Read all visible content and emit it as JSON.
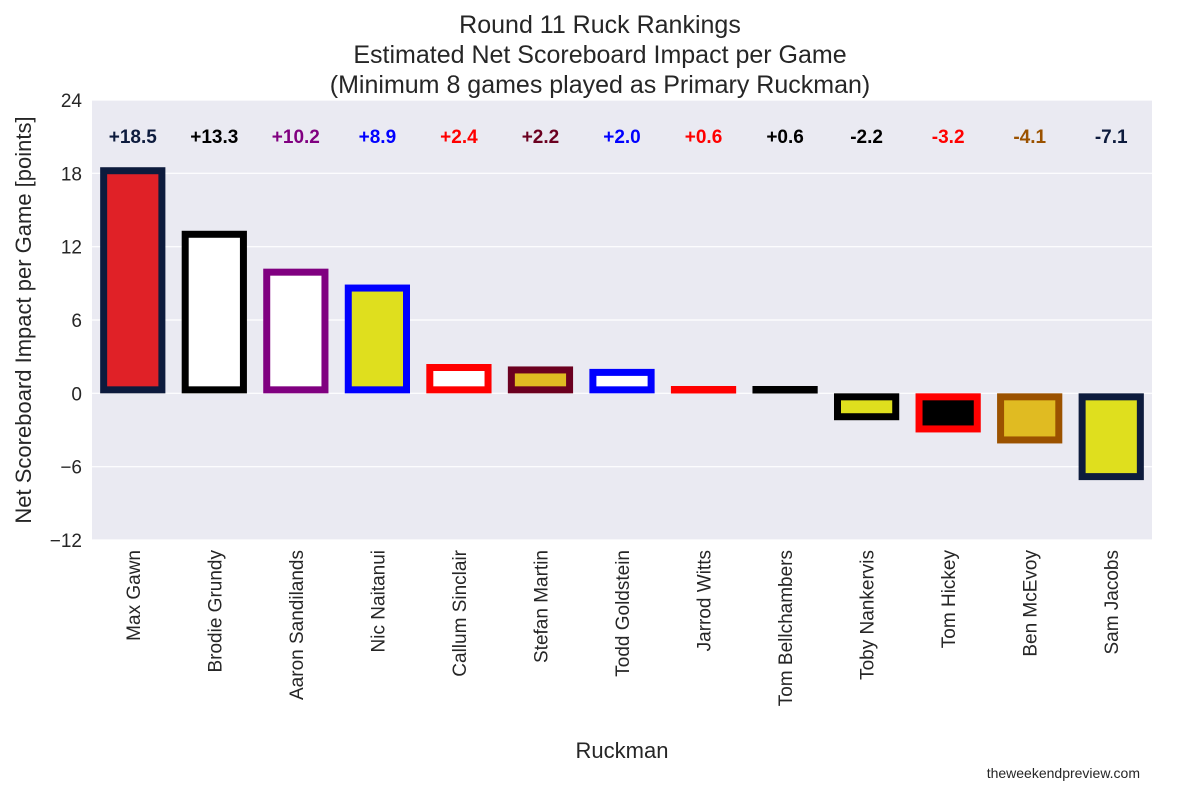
{
  "chart_data": {
    "type": "bar",
    "title": "Round 11 Ruck Rankings",
    "subtitle_lines": [
      "Estimated Net Scoreboard Impact per Game",
      "(Minimum 8 games played as Primary Ruckman)"
    ],
    "xlabel": "Ruckman",
    "ylabel": "Net Scoreboard Impact per Game [points]",
    "ylim": [
      -12,
      24
    ],
    "yticks": [
      -12,
      -6,
      0,
      6,
      12,
      18,
      24
    ],
    "ytick_labels": [
      "−12",
      "−6",
      "0",
      "6",
      "12",
      "18",
      "24"
    ],
    "grid": true,
    "categories": [
      "Max Gawn",
      "Brodie Grundy",
      "Aaron Sandilands",
      "Nic Naitanui",
      "Callum Sinclair",
      "Stefan Martin",
      "Todd Goldstein",
      "Jarrod Witts",
      "Tom Bellchambers",
      "Toby Nankervis",
      "Tom Hickey",
      "Ben McEvoy",
      "Sam Jacobs"
    ],
    "values": [
      18.5,
      13.3,
      10.2,
      8.9,
      2.4,
      2.2,
      2.0,
      0.6,
      0.6,
      -2.2,
      -3.2,
      -4.1,
      -7.1
    ],
    "value_labels": [
      "+18.5",
      "+13.3",
      "+10.2",
      "+8.9",
      "+2.4",
      "+2.2",
      "+2.0",
      "+0.6",
      "+0.6",
      "-2.2",
      "-3.2",
      "-4.1",
      "-7.1"
    ],
    "fill_colors": [
      "#e02127",
      "#ffffff",
      "#ffffff",
      "#dfdf1e",
      "#ffffff",
      "#e0bb22",
      "#ffffff",
      "#ff0000",
      "#000000",
      "#dfdf1e",
      "#000000",
      "#e0bb22",
      "#dfdf1e"
    ],
    "edge_colors": [
      "#0d1b3d",
      "#000000",
      "#800080",
      "#0000ff",
      "#ff0000",
      "#6b0020",
      "#0000ff",
      "#ff0000",
      "#000000",
      "#000000",
      "#ff0000",
      "#9b5200",
      "#0d1b3d"
    ],
    "label_colors": [
      "#0d1b3d",
      "#000000",
      "#800080",
      "#0000ff",
      "#ff0000",
      "#6b0020",
      "#0000ff",
      "#ff0000",
      "#000000",
      "#000000",
      "#ff0000",
      "#9b5200",
      "#0d1b3d"
    ],
    "background_color": "#eaeaf2",
    "grid_color": "#ffffff"
  },
  "footer": {
    "credit": "theweekendpreview.com"
  }
}
